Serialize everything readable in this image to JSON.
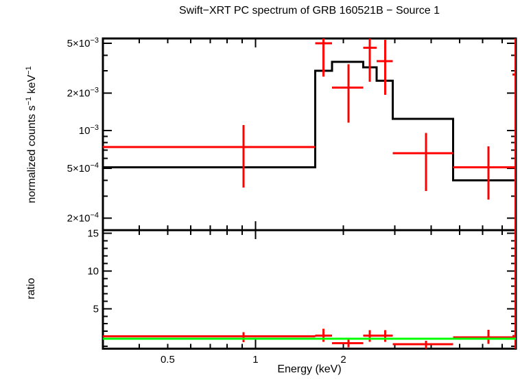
{
  "title": "Swift−XRT PC spectrum of GRB 160521B − Source 1",
  "xlabel": "Energy (keV)",
  "colors": {
    "data": "#ff0000",
    "model": "#000000",
    "unity_line": "#00ff00",
    "frame": "#000000",
    "background": "#ffffff"
  },
  "chart_data": [
    {
      "type": "scatter",
      "name": "spectrum-panel",
      "xscale": "log",
      "yscale": "log",
      "xlabel": "Energy (keV)",
      "ylabel": "normalized counts s−1 keV−1",
      "ylabel_segments": [
        {
          "t": "normalized counts s"
        },
        {
          "t": "−1",
          "sup": true
        },
        {
          "t": " keV"
        },
        {
          "t": "−1",
          "sup": true
        }
      ],
      "xlim": [
        0.3,
        7.8
      ],
      "ylim": [
        0.00016,
        0.00545
      ],
      "grid": false,
      "x_ticks": [
        {
          "v": 0.4
        },
        {
          "v": 0.5,
          "label": "0.5"
        },
        {
          "v": 0.6
        },
        {
          "v": 0.7
        },
        {
          "v": 0.8
        },
        {
          "v": 0.9
        },
        {
          "v": 1,
          "label": "1",
          "major": true
        },
        {
          "v": 2,
          "label": "2"
        },
        {
          "v": 3
        },
        {
          "v": 4
        },
        {
          "v": 5
        },
        {
          "v": 6
        },
        {
          "v": 7
        }
      ],
      "y_ticks": [
        {
          "v": 0.005,
          "base": "5×10",
          "exp": "−3"
        },
        {
          "v": 0.004
        },
        {
          "v": 0.003
        },
        {
          "v": 0.002,
          "base": "2×10",
          "exp": "−3"
        },
        {
          "v": 0.001,
          "base": "10",
          "exp": "−3",
          "major": true
        },
        {
          "v": 0.0009
        },
        {
          "v": 0.0008
        },
        {
          "v": 0.0007
        },
        {
          "v": 0.0006
        },
        {
          "v": 0.0005,
          "base": "5×10",
          "exp": "−4"
        },
        {
          "v": 0.0004
        },
        {
          "v": 0.0003
        },
        {
          "v": 0.0002,
          "base": "2×10",
          "exp": "−4"
        }
      ],
      "points": [
        {
          "e": 0.91,
          "e_lo": 0.3,
          "e_hi": 1.6,
          "y": 0.00074,
          "y_lo": 0.00035,
          "y_hi": 0.00111
        },
        {
          "e": 1.71,
          "e_lo": 1.6,
          "e_hi": 1.83,
          "y": 0.005,
          "y_lo": 0.0027,
          "y_hi": 0.0056
        },
        {
          "e": 2.08,
          "e_lo": 1.83,
          "e_hi": 2.34,
          "y": 0.0022,
          "y_lo": 0.00116,
          "y_hi": 0.0034
        },
        {
          "e": 2.46,
          "e_lo": 2.34,
          "e_hi": 2.6,
          "y": 0.0046,
          "y_lo": 0.00245,
          "y_hi": 0.0056
        },
        {
          "e": 2.78,
          "e_lo": 2.6,
          "e_hi": 2.95,
          "y": 0.0036,
          "y_lo": 0.00193,
          "y_hi": 0.0053
        },
        {
          "e": 3.84,
          "e_lo": 2.95,
          "e_hi": 4.75,
          "y": 0.00066,
          "y_lo": 0.00033,
          "y_hi": 0.00096
        },
        {
          "e": 6.29,
          "e_lo": 4.75,
          "e_hi": 7.72,
          "y": 0.00051,
          "y_lo": 0.00028,
          "y_hi": 0.00075
        },
        {
          "e": 7.78,
          "e_lo": 7.6,
          "e_hi": 7.85,
          "y": 0.0028,
          "y_lo": 0.00015,
          "y_hi": 0.0056
        }
      ],
      "model_bins": [
        {
          "e_lo": 0.3,
          "e_hi": 1.6,
          "y": 0.00051
        },
        {
          "e_lo": 1.6,
          "e_hi": 1.83,
          "y": 0.003
        },
        {
          "e_lo": 1.83,
          "e_hi": 2.34,
          "y": 0.00355
        },
        {
          "e_lo": 2.34,
          "e_hi": 2.6,
          "y": 0.0032
        },
        {
          "e_lo": 2.6,
          "e_hi": 2.95,
          "y": 0.0025
        },
        {
          "e_lo": 2.95,
          "e_hi": 4.75,
          "y": 0.00124
        },
        {
          "e_lo": 4.75,
          "e_hi": 7.7,
          "y": 0.0004
        }
      ]
    },
    {
      "type": "scatter",
      "name": "ratio-panel",
      "xscale": "log",
      "yscale": "linear",
      "ylabel": "ratio",
      "xlim": [
        0.3,
        7.8
      ],
      "ylim": [
        -0.3,
        15.4
      ],
      "grid": false,
      "reference_line": 1.0,
      "y_ticks": [
        {
          "v": 0
        },
        {
          "v": 1
        },
        {
          "v": 2
        },
        {
          "v": 3
        },
        {
          "v": 4
        },
        {
          "v": 5,
          "label": "5",
          "major": true
        },
        {
          "v": 6
        },
        {
          "v": 7
        },
        {
          "v": 8
        },
        {
          "v": 9
        },
        {
          "v": 10,
          "label": "10",
          "major": true
        },
        {
          "v": 11
        },
        {
          "v": 12
        },
        {
          "v": 13
        },
        {
          "v": 14
        },
        {
          "v": 15,
          "label": "15",
          "major": true
        }
      ],
      "points": [
        {
          "e": 0.91,
          "e_lo": 0.3,
          "e_hi": 1.6,
          "r": 1.35,
          "r_lo": 0.55,
          "r_hi": 1.9
        },
        {
          "e": 1.71,
          "e_lo": 1.6,
          "e_hi": 1.83,
          "r": 1.45,
          "r_lo": 0.6,
          "r_hi": 2.35
        },
        {
          "e": 2.08,
          "e_lo": 1.83,
          "e_hi": 2.34,
          "r": 0.45,
          "r_lo": -0.1,
          "r_hi": 1.05
        },
        {
          "e": 2.46,
          "e_lo": 2.34,
          "e_hi": 2.6,
          "r": 1.45,
          "r_lo": 0.6,
          "r_hi": 2.15
        },
        {
          "e": 2.78,
          "e_lo": 2.6,
          "e_hi": 2.95,
          "r": 1.45,
          "r_lo": 0.6,
          "r_hi": 2.15
        },
        {
          "e": 3.84,
          "e_lo": 2.95,
          "e_hi": 4.75,
          "r": 0.3,
          "r_lo": -0.3,
          "r_hi": 0.75
        },
        {
          "e": 6.29,
          "e_lo": 4.75,
          "e_hi": 7.72,
          "r": 1.2,
          "r_lo": 0.35,
          "r_hi": 2.2
        },
        {
          "e": 7.78,
          "e_lo": 7.6,
          "e_hi": 7.85,
          "r": 1.4,
          "r_lo": -0.3,
          "r_hi": 15.4
        }
      ]
    }
  ]
}
